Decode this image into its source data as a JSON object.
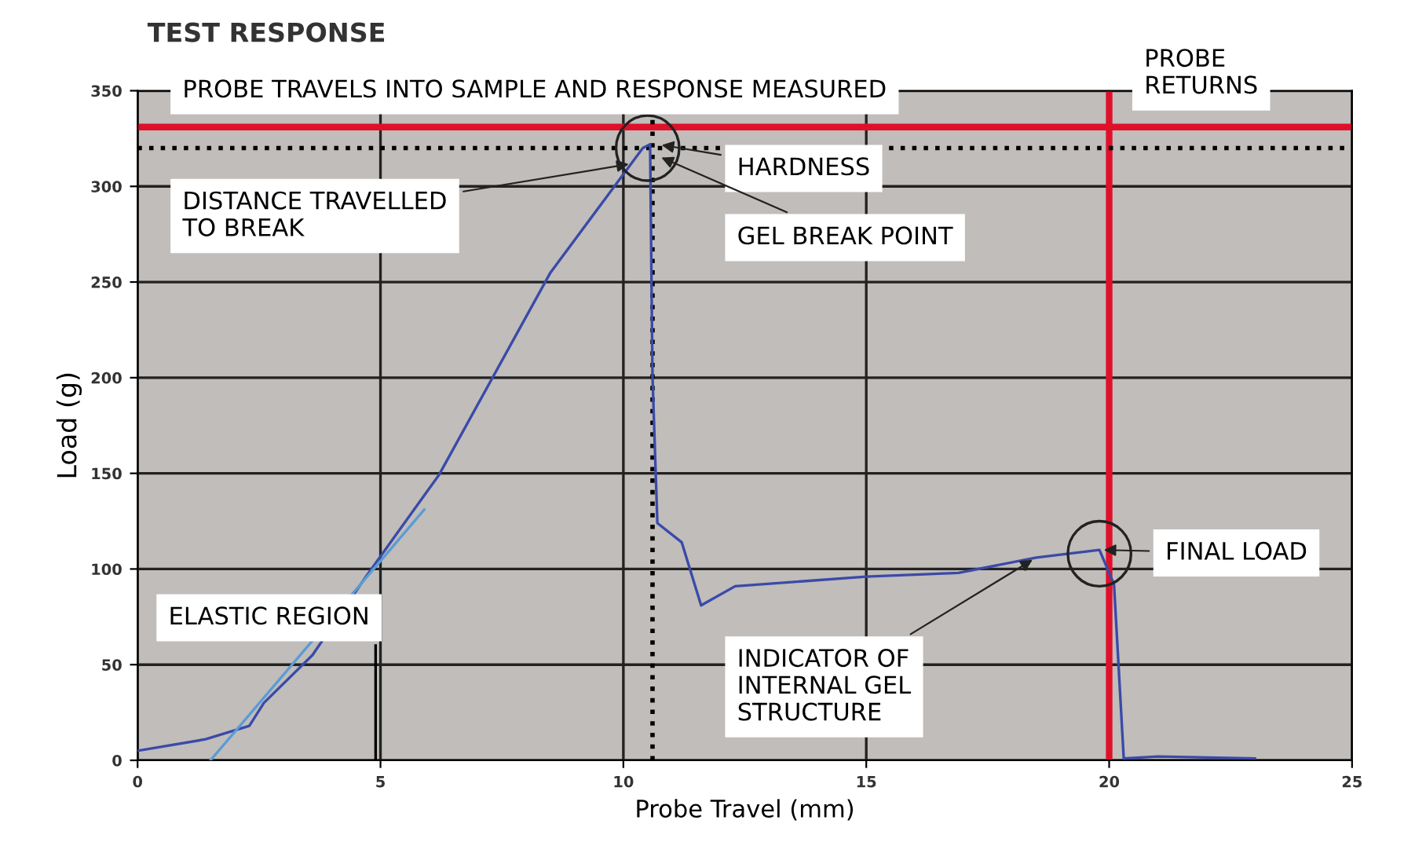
{
  "chart_data": {
    "type": "line",
    "title": "TEST RESPONSE",
    "xlabel": "Probe Travel (mm)",
    "ylabel": "Load (g)",
    "xlim": [
      0,
      25
    ],
    "ylim": [
      0,
      350
    ],
    "xticks": [
      0,
      5,
      10,
      15,
      20,
      25
    ],
    "yticks": [
      0,
      50,
      100,
      150,
      200,
      250,
      300,
      350
    ],
    "grid": true,
    "marker": "none",
    "series": [
      {
        "color": "#3a4aa8",
        "x": [
          0,
          1.4,
          2.3,
          2.6,
          3.6,
          4.7,
          6.2,
          8.5,
          10.4,
          10.55,
          10.6,
          10.7,
          11.2,
          11.6,
          12.3,
          15,
          16.9,
          18.5,
          19.8,
          20.1,
          20.3,
          21,
          23
        ],
        "values": [
          5,
          11,
          18,
          30,
          55,
          96,
          149,
          255,
          320,
          322,
          200,
          124,
          114,
          81,
          91,
          96,
          98,
          106,
          110,
          92,
          1,
          2,
          1
        ]
      },
      {
        "color": "#5b9bd5",
        "x": [
          1.5,
          5.9
        ],
        "values": [
          0,
          131
        ]
      },
      {
        "color": "#000000",
        "x": [
          4.9,
          4.9
        ],
        "values": [
          0,
          60
        ]
      }
    ],
    "ref_lines": [
      {
        "axis": "y",
        "value": 331,
        "color": "#e0102a",
        "line_style": "solid"
      },
      {
        "axis": "x",
        "value": 20,
        "color": "#e0102a",
        "line_style": "solid"
      },
      {
        "axis": "y",
        "value": 320,
        "color": "#000000",
        "line_style": "dotted"
      },
      {
        "axis": "x",
        "value": 10.6,
        "color": "#000000",
        "line_style": "dotted"
      }
    ],
    "annotations": [
      "PROBE TRAVELS INTO SAMPLE AND RESPONSE MEASURED",
      "PROBE\nRETURNS",
      {
        "text": "DISTANCE TRAVELLED\nTO BREAK",
        "x": 10.2,
        "y": 312
      },
      {
        "text": "HARDNESS",
        "x": 10.7,
        "y": 322
      },
      {
        "text": "GEL BREAK POINT",
        "x": 10.7,
        "y": 316
      },
      "ELASTIC REGION",
      {
        "text": "INDICATOR OF\nINTERNAL GEL\nSTRUCTURE",
        "x": 18.5,
        "y": 106
      },
      {
        "text": "FINAL LOAD",
        "x": 19.8,
        "y": 110
      }
    ]
  }
}
